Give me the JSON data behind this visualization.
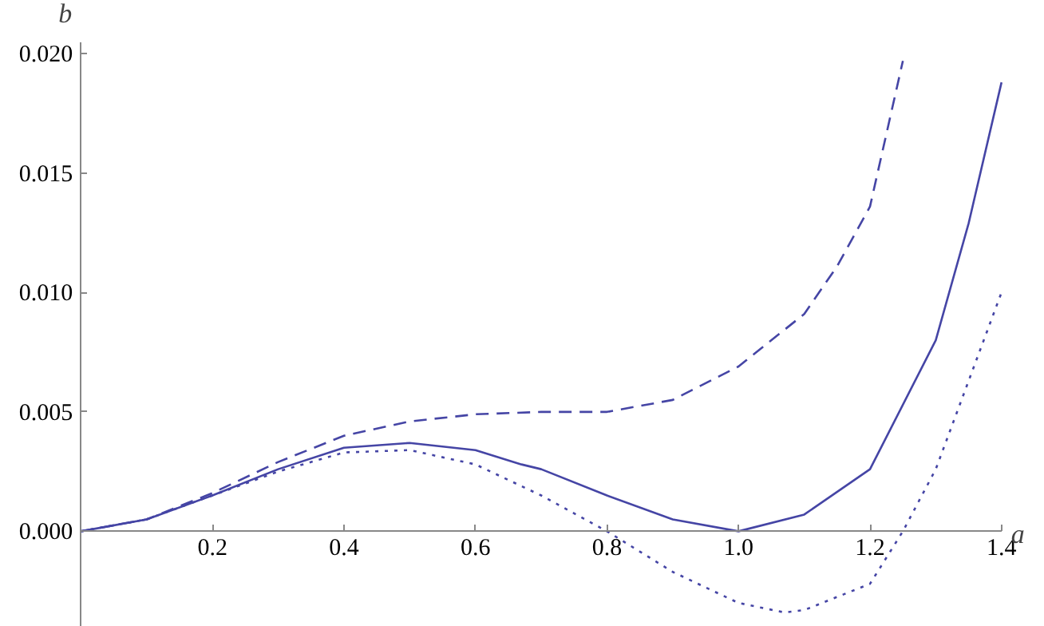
{
  "chart_data": {
    "type": "line",
    "xlabel": "a",
    "ylabel": "b",
    "xlim": [
      0,
      1.4
    ],
    "ylim": [
      -0.004,
      0.0205
    ],
    "xticks": [
      0.2,
      0.4,
      0.6,
      0.8,
      {
        "value": 1.0,
        "label": "1.0"
      },
      1.2,
      1.4
    ],
    "yticks": [
      {
        "value": 0,
        "label": "0.000"
      },
      {
        "value": 0.005,
        "label": "0.005"
      },
      {
        "value": 0.01,
        "label": "0.010"
      },
      {
        "value": 0.015,
        "label": "0.015"
      },
      {
        "value": 0.02,
        "label": "0.020"
      }
    ],
    "series": [
      {
        "color": "#4545a5",
        "line_style": "solid",
        "x": [
          0,
          0.1,
          0.2,
          0.3,
          0.4,
          0.5,
          0.6,
          0.67,
          0.7,
          0.8,
          0.9,
          1.0,
          1.1,
          1.2,
          1.3,
          1.35,
          1.4
        ],
        "values": [
          0,
          0.0005,
          0.0015,
          0.0026,
          0.0035,
          0.0037,
          0.0034,
          0.0028,
          0.0026,
          0.0015,
          0.0005,
          0,
          0.0007,
          0.0026,
          0.008,
          0.0129,
          0.0188
        ]
      },
      {
        "color": "#4545a5",
        "line_style": "dashed",
        "x": [
          0,
          0.1,
          0.2,
          0.3,
          0.4,
          0.5,
          0.6,
          0.7,
          0.8,
          0.9,
          1.0,
          1.1,
          1.15,
          1.2,
          1.25
        ],
        "values": [
          0,
          0.0005,
          0.0016,
          0.0029,
          0.004,
          0.0046,
          0.0049,
          0.005,
          0.005,
          0.0055,
          0.0069,
          0.0091,
          0.0111,
          0.0136,
          0.0197
        ]
      },
      {
        "color": "#4545a5",
        "line_style": "dotted",
        "x": [
          0,
          0.1,
          0.2,
          0.3,
          0.4,
          0.5,
          0.6,
          0.7,
          0.8,
          0.9,
          1.0,
          1.07,
          1.1,
          1.2,
          1.25,
          1.3,
          1.4
        ],
        "values": [
          0,
          0.0005,
          0.0015,
          0.0025,
          0.0033,
          0.0034,
          0.0028,
          0.0015,
          0,
          -0.0017,
          -0.003,
          -0.0034,
          -0.0033,
          -0.0022,
          0,
          0.0026,
          0.01
        ]
      }
    ]
  }
}
